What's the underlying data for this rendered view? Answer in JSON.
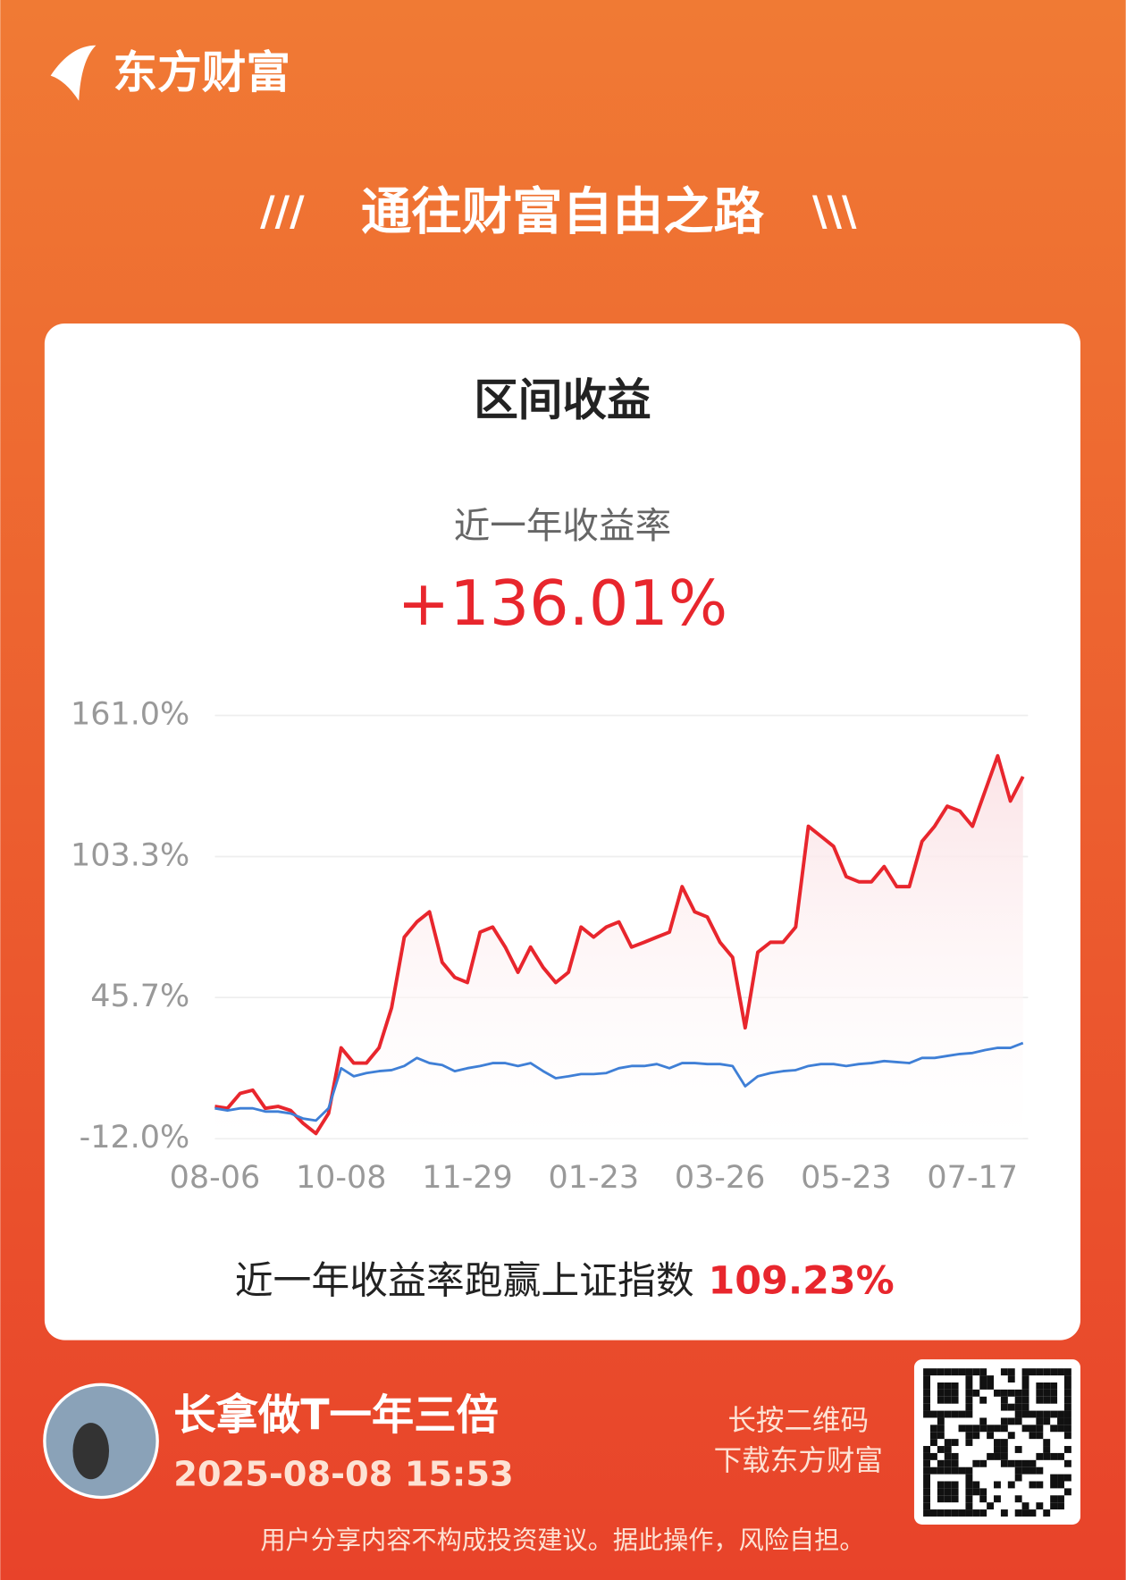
{
  "header": {
    "brand": "东方财富",
    "slogan": "通往财富自由之路"
  },
  "card": {
    "title": "区间收益",
    "metric_label": "近一年收益率",
    "metric_value": "+136.01%",
    "compare_label": "近一年收益率跑赢上证指数",
    "compare_value": "109.23%"
  },
  "chart_data": {
    "type": "line",
    "categories": [
      "08-06",
      null,
      null,
      null,
      null,
      null,
      null,
      null,
      null,
      null,
      "10-08",
      null,
      null,
      null,
      null,
      null,
      null,
      null,
      null,
      null,
      "11-29",
      null,
      null,
      null,
      null,
      null,
      null,
      null,
      null,
      null,
      "01-23",
      null,
      null,
      null,
      null,
      null,
      null,
      null,
      null,
      null,
      "03-26",
      null,
      null,
      null,
      null,
      null,
      null,
      null,
      null,
      null,
      "05-23",
      null,
      null,
      null,
      null,
      null,
      null,
      null,
      null,
      null,
      "07-17",
      null,
      null,
      null,
      null
    ],
    "series": [
      {
        "color": "#e8262d",
        "values": [
          1.2,
          0.4,
          6.5,
          7.8,
          0.4,
          1.2,
          -0.5,
          -5.8,
          -9.9,
          -1.7,
          25.1,
          18.9,
          18.9,
          25.1,
          41.5,
          70.4,
          76.6,
          80.7,
          60.1,
          53.9,
          51.8,
          72.4,
          74.5,
          66.3,
          56.0,
          66.3,
          58.0,
          51.8,
          56.0,
          74.5,
          70.4,
          74.5,
          76.6,
          66.3,
          68.3,
          70.4,
          72.4,
          91.0,
          80.7,
          78.6,
          68.3,
          62.1,
          33.3,
          64.2,
          68.3,
          68.3,
          74.5,
          115.7,
          111.6,
          107.5,
          95.1,
          93.0,
          93.0,
          99.2,
          91.0,
          91.0,
          109.5,
          115.7,
          123.9,
          121.9,
          115.7,
          130.1,
          144.5,
          126.0,
          136.0
        ]
      },
      {
        "color": "#3f7fd6",
        "values": [
          0.4,
          -0.5,
          0.4,
          0.4,
          -0.9,
          -0.9,
          -1.7,
          -3.8,
          -4.6,
          0.4,
          16.8,
          13.5,
          14.8,
          15.6,
          16.0,
          17.7,
          21.0,
          18.9,
          18.1,
          15.6,
          16.8,
          17.7,
          18.9,
          18.9,
          17.7,
          18.9,
          15.6,
          12.7,
          13.5,
          14.4,
          14.4,
          14.8,
          16.8,
          17.7,
          17.7,
          18.5,
          16.8,
          18.9,
          18.9,
          18.5,
          18.5,
          17.7,
          9.4,
          13.5,
          14.8,
          15.6,
          16.0,
          17.7,
          18.5,
          18.5,
          17.7,
          18.5,
          18.9,
          19.7,
          19.3,
          18.9,
          21.0,
          21.0,
          21.8,
          22.6,
          23.0,
          24.2,
          25.1,
          25.1,
          27.1
        ]
      }
    ],
    "ylim": [
      -12,
      161
    ],
    "yticks": [
      {
        "value": -12,
        "label": "-12.0%"
      },
      {
        "value": 45.7,
        "label": "45.7%"
      },
      {
        "value": 103.3,
        "label": "103.3%"
      },
      {
        "value": 161,
        "label": "161.0%"
      }
    ],
    "grid": true
  },
  "footer": {
    "user_name": "长拿做T一年三倍",
    "timestamp": "2025-08-08 15:53",
    "qr_hint_1": "长按二维码",
    "qr_hint_2": "下载东方财富",
    "disclaimer": "用户分享内容不构成投资建议。据此操作，风险自担。"
  }
}
